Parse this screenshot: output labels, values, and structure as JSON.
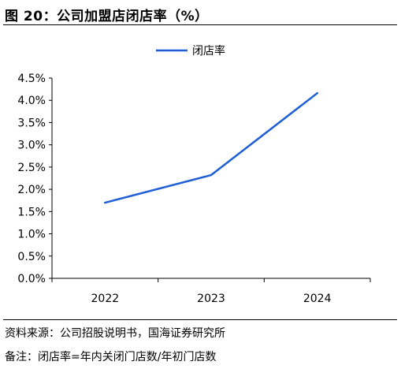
{
  "title": "图 20：公司加盟店闭店率（%）",
  "footer": {
    "source": "资料来源：公司招股说明书，国海证券研究所",
    "note": "备注：闭店率=年内关闭门店数/年初门店数"
  },
  "colors": {
    "line": "#1f5fd6",
    "axis": "#000000",
    "text": "#000000"
  },
  "chart_data": {
    "type": "line",
    "title": "",
    "xlabel": "",
    "ylabel": "",
    "categories": [
      "2022",
      "2023",
      "2024"
    ],
    "series": [
      {
        "name": "闭店率",
        "values": [
          1.7,
          2.32,
          4.16
        ]
      }
    ],
    "ylim": [
      0,
      4.5
    ],
    "yticks": [
      0,
      0.5,
      1.0,
      1.5,
      2.0,
      2.5,
      3.0,
      3.5,
      4.0,
      4.5
    ],
    "ytick_labels": [
      "0.0%",
      "0.5%",
      "1.0%",
      "1.5%",
      "2.0%",
      "2.5%",
      "3.0%",
      "3.5%",
      "4.0%",
      "4.5%"
    ],
    "grid": false,
    "legend_position": "top-center"
  }
}
